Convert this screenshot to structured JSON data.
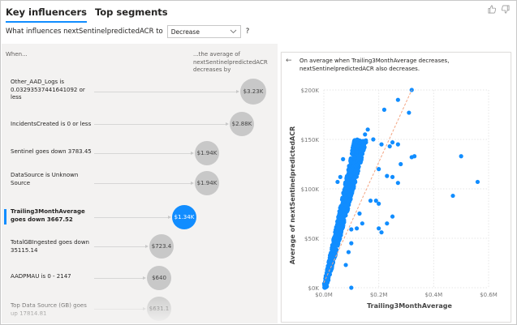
{
  "tabs": [
    {
      "label": "Key influencers",
      "active": true
    },
    {
      "label": "Top segments",
      "active": false
    }
  ],
  "feedback": {
    "like": "thumbs-up-icon",
    "dislike": "thumbs-down-icon"
  },
  "question": {
    "prefix": "What influences nextSentinelpredictedACR to",
    "select_value": "Decrease",
    "suffix": "?"
  },
  "left": {
    "when_header": "When...",
    "avg_header": "...the average of nextSentinelpredictedACR decreases by",
    "influencers": [
      {
        "label": "Other_AAD_Logs is 0.03293537441641092 or less",
        "value": "$3.23K",
        "selected": false
      },
      {
        "label": "IncidentsCreated is 0 or less",
        "value": "$2.88K",
        "selected": false
      },
      {
        "label": "Sentinel goes down 3783.45",
        "value": "$1.94K",
        "selected": false
      },
      {
        "label": "DataSource is Unknown Source",
        "value": "$1.94K",
        "selected": false
      },
      {
        "label": "Trailing3MonthAverage goes down 3667.52",
        "value": "$1.34K",
        "selected": true
      },
      {
        "label": "TotalGBIngested goes down 35115.14",
        "value": "$723.4",
        "selected": false
      },
      {
        "label": "AADPMAU is 0 - 2147",
        "value": "$640",
        "selected": false
      },
      {
        "label": "Top Data Source (GB) goes up 17814.81",
        "value": "$631.1",
        "selected": false
      }
    ]
  },
  "detail": {
    "back_icon": "arrow-left-icon",
    "explanation": "On average when Trailing3MonthAverage decreases, nextSentinelpredictedACR also decreases."
  },
  "chart_data": {
    "type": "scatter",
    "title": "",
    "xlabel": "Trailing3MonthAverage",
    "ylabel": "Average of nextSentinelpredictedACR",
    "x_ticks": [
      "$0.0M",
      "$0.2M",
      "$0.4M",
      "$0.6M"
    ],
    "y_ticks": [
      "$0K",
      "$50K",
      "$100K",
      "$150K",
      "$200K"
    ],
    "xlim": [
      0,
      0.6
    ],
    "ylim": [
      0,
      200
    ],
    "x_unit": "$M",
    "y_unit": "$K",
    "grid": true,
    "point_color": "#118dff",
    "trendline": {
      "color": "#f4a582",
      "style": "dashed",
      "from": [
        0,
        5
      ],
      "to": [
        0.32,
        200
      ]
    },
    "outliers": [
      [
        0.32,
        200
      ],
      [
        0.27,
        190
      ],
      [
        0.22,
        180
      ],
      [
        0.31,
        177
      ],
      [
        0.16,
        160
      ],
      [
        0.15,
        155
      ],
      [
        0.18,
        150
      ],
      [
        0.14,
        148
      ],
      [
        0.21,
        145
      ],
      [
        0.25,
        147
      ],
      [
        0.27,
        145
      ],
      [
        0.24,
        143
      ],
      [
        0.28,
        125
      ],
      [
        0.33,
        133
      ],
      [
        0.32,
        132
      ],
      [
        0.5,
        133
      ],
      [
        0.56,
        107
      ],
      [
        0.47,
        93
      ],
      [
        0.27,
        106
      ],
      [
        0.25,
        112
      ],
      [
        0.2,
        120
      ],
      [
        0.23,
        113
      ],
      [
        0.19,
        88
      ],
      [
        0.17,
        88
      ],
      [
        0.2,
        85
      ],
      [
        0.25,
        72
      ],
      [
        0.21,
        56
      ],
      [
        0.2,
        60
      ],
      [
        0.23,
        65
      ],
      [
        0.1,
        59
      ],
      [
        0.06,
        112
      ],
      [
        0.07,
        130
      ],
      [
        0.05,
        107
      ],
      [
        0.13,
        75
      ],
      [
        0.14,
        65
      ],
      [
        0.12,
        60
      ],
      [
        0.1,
        45
      ],
      [
        0.09,
        36
      ],
      [
        0.08,
        23
      ],
      [
        0.1,
        0
      ]
    ],
    "note": "Dense cluster of points along 0.0M–0.15M x and 0K–150K y, rising roughly linearly"
  }
}
